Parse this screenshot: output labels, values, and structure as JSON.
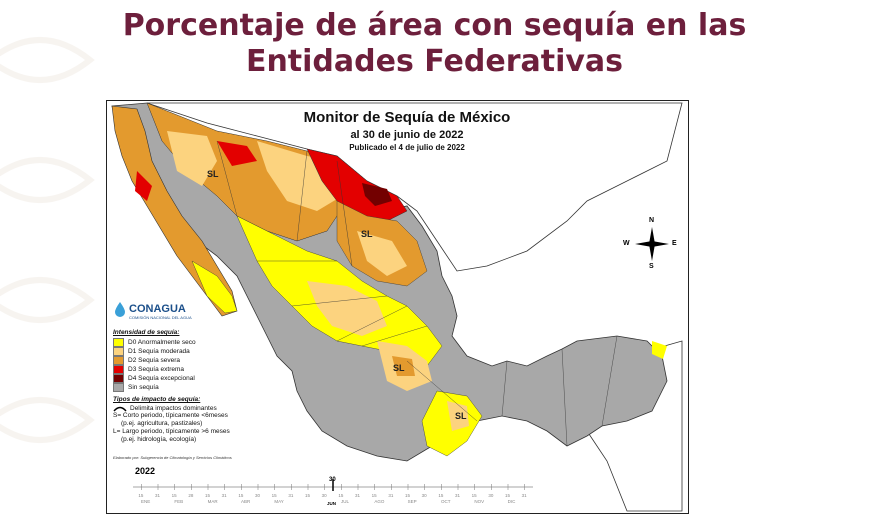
{
  "slide": {
    "title_line1": "Porcentaje de área con sequía en las",
    "title_line2": "Entidades Federativas"
  },
  "map": {
    "title": "Monitor de Sequía de México",
    "date": "al 30 de junio de 2022",
    "published": "Publicado el 4 de julio de 2022",
    "region_labels": [
      "SL",
      "SL",
      "SL",
      "SL"
    ],
    "compass": {
      "n": "N",
      "s": "S",
      "e": "E",
      "w": "W"
    }
  },
  "logo": {
    "name": "CONAGUA",
    "subtitle": "COMISIÓN NACIONAL DEL AGUA"
  },
  "legend": {
    "intensity_heading": "Intensidad de sequía:",
    "items": [
      {
        "label": "D0 Anormalmente seco",
        "color": "#ffff00"
      },
      {
        "label": "D1 Sequía moderada",
        "color": "#fcd37f"
      },
      {
        "label": "D2 Sequía severa",
        "color": "#e39a2e"
      },
      {
        "label": "D3 Sequía extrema",
        "color": "#e30000"
      },
      {
        "label": "D4 Sequía excepcional",
        "color": "#730000"
      },
      {
        "label": "Sin sequía",
        "color": "#a8a8a8"
      }
    ],
    "impact_heading": "Tipos de impacto de sequía:",
    "impact_line": "Delimita impactos dominantes",
    "short_term": "S= Corto periodo, típicamente <6meses",
    "short_term_eg": "(p.ej. agricultura, pastizales)",
    "long_term": "L= Largo periodo, típicamente >6 meses",
    "long_term_eg": "(p.ej. hidrología, ecología)"
  },
  "credit": "Elaborado por: Subgerencia de Climatología y Servicios Climáticos",
  "timeline": {
    "year": "2022",
    "marker_day": "30",
    "marker_month": "JUN",
    "months": [
      "ENE",
      "FEB",
      "MAR",
      "ABR",
      "MAY",
      "JUN",
      "JUL",
      "AGO",
      "SEP",
      "OCT",
      "NOV",
      "DIC"
    ],
    "ticks": [
      "15",
      "31",
      "15",
      "28",
      "15",
      "31",
      "15",
      "30",
      "15",
      "31",
      "15",
      "30",
      "15",
      "31",
      "15",
      "31",
      "15",
      "30",
      "15",
      "31",
      "15",
      "30",
      "15",
      "31"
    ]
  }
}
